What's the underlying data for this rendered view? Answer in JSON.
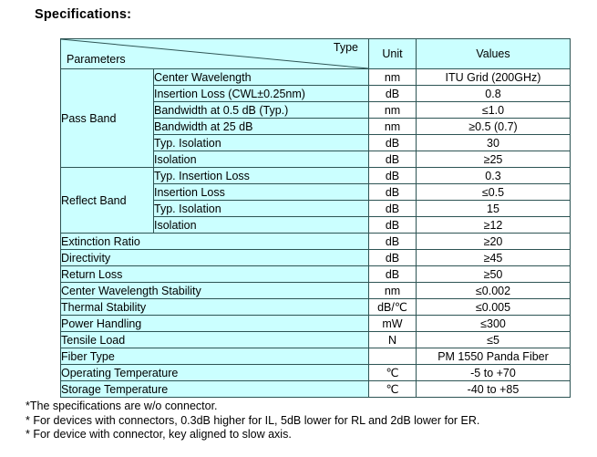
{
  "title": "Specifications:",
  "table": {
    "header": {
      "type": "Type",
      "parameters": "Parameters",
      "unit": "Unit",
      "values": "Values"
    },
    "groups": [
      {
        "name": "Pass Band",
        "rows": [
          {
            "param": "Center Wavelength",
            "unit": "nm",
            "value": "ITU Grid (200GHz)"
          },
          {
            "param": "Insertion Loss (CWL±0.25nm)",
            "unit": "dB",
            "value": "0.8"
          },
          {
            "param": "Bandwidth at 0.5 dB (Typ.)",
            "unit": "nm",
            "value": "≤1.0"
          },
          {
            "param": "Bandwidth at 25 dB",
            "unit": "nm",
            "value": "≥0.5 (0.7)"
          },
          {
            "param": "Typ. Isolation",
            "unit": "dB",
            "value": "30"
          },
          {
            "param": "Isolation",
            "unit": "dB",
            "value": "≥25"
          }
        ]
      },
      {
        "name": "Reflect Band",
        "rows": [
          {
            "param": "Typ. Insertion Loss",
            "unit": "dB",
            "value": "0.3"
          },
          {
            "param": "Insertion Loss",
            "unit": "dB",
            "value": "≤0.5"
          },
          {
            "param": "Typ. Isolation",
            "unit": "dB",
            "value": "15"
          },
          {
            "param": "Isolation",
            "unit": "dB",
            "value": "≥12"
          }
        ]
      }
    ],
    "rows": [
      {
        "param": "Extinction Ratio",
        "unit": "dB",
        "value": "≥20"
      },
      {
        "param": "Directivity",
        "unit": "dB",
        "value": "≥45"
      },
      {
        "param": "Return Loss",
        "unit": "dB",
        "value": "≥50"
      },
      {
        "param": "Center Wavelength Stability",
        "unit": "nm",
        "value": "≤0.002"
      },
      {
        "param": "Thermal Stability",
        "unit": "dB/℃",
        "value": "≤0.005"
      },
      {
        "param": "Power Handling",
        "unit": "mW",
        "value": "≤300"
      },
      {
        "param": "Tensile Load",
        "unit": "N",
        "value": "≤5"
      },
      {
        "param": "Fiber Type",
        "unit": "",
        "value": "PM 1550 Panda Fiber"
      },
      {
        "param": "Operating Temperature",
        "unit": "℃",
        "value": "-5 to +70"
      },
      {
        "param": "Storage Temperature",
        "unit": "℃",
        "value": "-40 to +85"
      }
    ]
  },
  "footnotes": [
    "*The specifications are w/o connector.",
    "* For devices with connectors, 0.3dB higher for IL, 5dB lower for RL and 2dB lower for ER.",
    "* For device with connector, key aligned to slow axis."
  ],
  "colors": {
    "cell_fill": "#cbffff",
    "value_fill": "#ffffff",
    "border": "#2d5454",
    "text": "#000000"
  }
}
